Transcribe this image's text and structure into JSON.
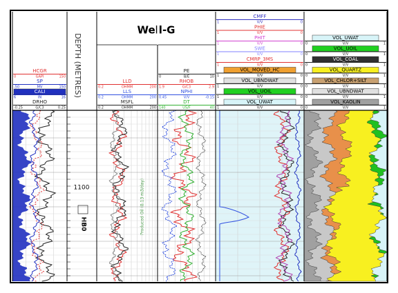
{
  "title": "Well-G",
  "depth_track": {
    "label": "DEPTH (METRES)",
    "depth_mark": "1100",
    "zone": "HB0"
  },
  "annotation": "Produced Oil (8.13 m3/day)",
  "tracks": [
    {
      "curves": [
        {
          "name": "HCGR",
          "left": "0",
          "unit": "GAPI",
          "right": "150",
          "color": "#e03030"
        },
        {
          "name": "SP",
          "left": "-50",
          "unit": "MV",
          "right": "150",
          "color": "#2030c0"
        },
        {
          "name": "CALI",
          "left": "6",
          "unit": "IN",
          "right": "16",
          "color": "#2030c0",
          "fill": "#2030c0"
        },
        {
          "name": "DRHO",
          "left": "-0.25",
          "unit": "G/C3",
          "right": "0.25",
          "color": "#222222"
        }
      ]
    },
    {
      "curves": [
        {
          "name": "LLD",
          "left": "0.2",
          "unit": "OHMM",
          "right": "200",
          "color": "#e03030"
        },
        {
          "name": "LLS",
          "left": "0.2",
          "unit": "OHMM",
          "right": "200",
          "color": "#3050e0"
        },
        {
          "name": "MSFL",
          "left": "0.2",
          "unit": "OHMM",
          "right": "200",
          "color": "#222222"
        }
      ]
    },
    {
      "curves": [
        {
          "name": "PE",
          "left": "0",
          "unit": "B/E",
          "right": "10",
          "color": "#222222"
        },
        {
          "name": "RHOB",
          "left": "1.9",
          "unit": "G/C3",
          "right": "2.9",
          "color": "#e03030"
        },
        {
          "name": "NPHI",
          "left": "0.45",
          "unit": "V/V",
          "right": "-0.15",
          "color": "#3050e0"
        },
        {
          "name": "DT",
          "left": "140",
          "unit": "US/F",
          "right": "40",
          "color": "#30b030"
        }
      ]
    },
    {
      "curves": [
        {
          "name": "CMFF",
          "left": "1",
          "unit": "V/V",
          "right": "0",
          "color": "#3030c0"
        },
        {
          "name": "PHIE",
          "left": "1",
          "unit": "V/V",
          "right": "0",
          "color": "#e03030"
        },
        {
          "name": "PHIT",
          "left": "1",
          "unit": "V/V",
          "right": "0",
          "color": "#d040d0"
        },
        {
          "name": "SWE",
          "left": "1",
          "unit": "V/V",
          "right": "0",
          "color": "#8080ff"
        },
        {
          "name": "CMRP_3MS",
          "left": "1",
          "unit": "V/V",
          "right": "0",
          "color": "#e03030"
        },
        {
          "name": "VOL_MOVED_HC",
          "left": "1",
          "unit": "V/V",
          "right": "0",
          "color": "#222222",
          "fill": "#f0a030"
        },
        {
          "name": "VOL_UBNDWAT",
          "left": "1",
          "unit": "V/V",
          "right": "0",
          "color": "#222222",
          "fill": "#e0e0e0"
        },
        {
          "name": "VOL_UOIL",
          "left": "1",
          "unit": "V/V",
          "right": "0",
          "color": "#222222",
          "fill": "#20d020"
        },
        {
          "name": "VOL_UWAT",
          "left": "1",
          "unit": "V/V",
          "right": "0",
          "color": "#222222",
          "fill": "#d8f4f8"
        }
      ]
    },
    {
      "curves": [
        {
          "name": "VOL_UWAT",
          "left": "0",
          "unit": "V/V",
          "right": "1",
          "color": "#222222",
          "fill": "#d8f4f8"
        },
        {
          "name": "VOL_UOIL",
          "left": "0",
          "unit": "V/V",
          "right": "1",
          "color": "#222222",
          "fill": "#20d020"
        },
        {
          "name": "VOL_COAL",
          "left": "0",
          "unit": "V/V",
          "right": "1",
          "color": "#222222",
          "fill": "#303030"
        },
        {
          "name": "VOL_QUARTZ",
          "left": "0",
          "unit": "V/V",
          "right": "1",
          "color": "#222222",
          "fill": "#f8f020"
        },
        {
          "name": "VOL_CHLOR+SILT",
          "left": "0",
          "unit": "V/V",
          "right": "1",
          "color": "#222222",
          "fill": "#c8a070"
        },
        {
          "name": "VOL_UBNDWAT",
          "left": "0",
          "unit": "V/V",
          "right": "1",
          "color": "#222222",
          "fill": "#e0e0e0"
        },
        {
          "name": "VOL_KAOLIN",
          "left": "0",
          "unit": "V/V",
          "right": "1",
          "color": "#222222",
          "fill": "#a0a0a0"
        }
      ]
    }
  ]
}
